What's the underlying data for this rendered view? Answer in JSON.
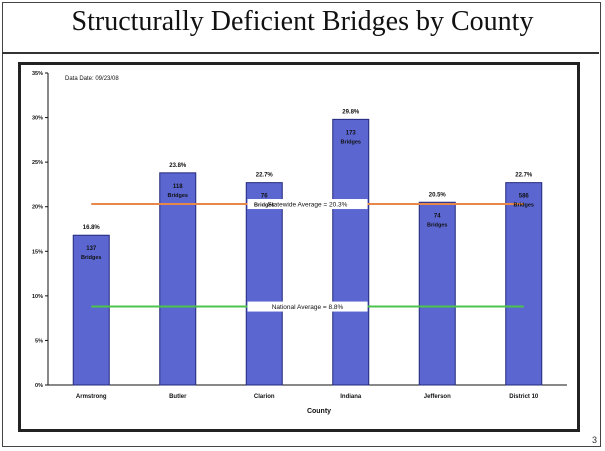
{
  "slide": {
    "title": "Structurally Deficient Bridges by County",
    "page_number": "3"
  },
  "colors": {
    "bar": "#5b66d0",
    "bar_border": "#23287a",
    "statewide_line": "#e8874a",
    "national_line": "#4cc44c"
  },
  "chart_data": {
    "type": "bar",
    "title": "",
    "annotation": "Data Date: 09/23/08",
    "xlabel": "County",
    "ylabel": "",
    "categories": [
      "Armstrong",
      "Butler",
      "Clarion",
      "Indiana",
      "Jefferson",
      "District 10"
    ],
    "values": [
      16.8,
      23.8,
      22.7,
      29.8,
      20.5,
      22.7
    ],
    "value_labels": [
      "16.8%",
      "23.8%",
      "22.7%",
      "29.8%",
      "20.5%",
      "22.7%"
    ],
    "bar_counts": [
      "137",
      "118",
      "76",
      "173",
      "74",
      "586"
    ],
    "bar_unit": "Bridges",
    "y_ticks": [
      "0%",
      "5%",
      "10%",
      "15%",
      "20%",
      "25%",
      "30%",
      "35%"
    ],
    "ylim": [
      0,
      35
    ],
    "reference_lines": [
      {
        "label": "Statewide Average = 20.3%",
        "value": 20.3
      },
      {
        "label": "National Average = 8.8%",
        "value": 8.8
      }
    ],
    "grid": false,
    "legend": "none"
  }
}
